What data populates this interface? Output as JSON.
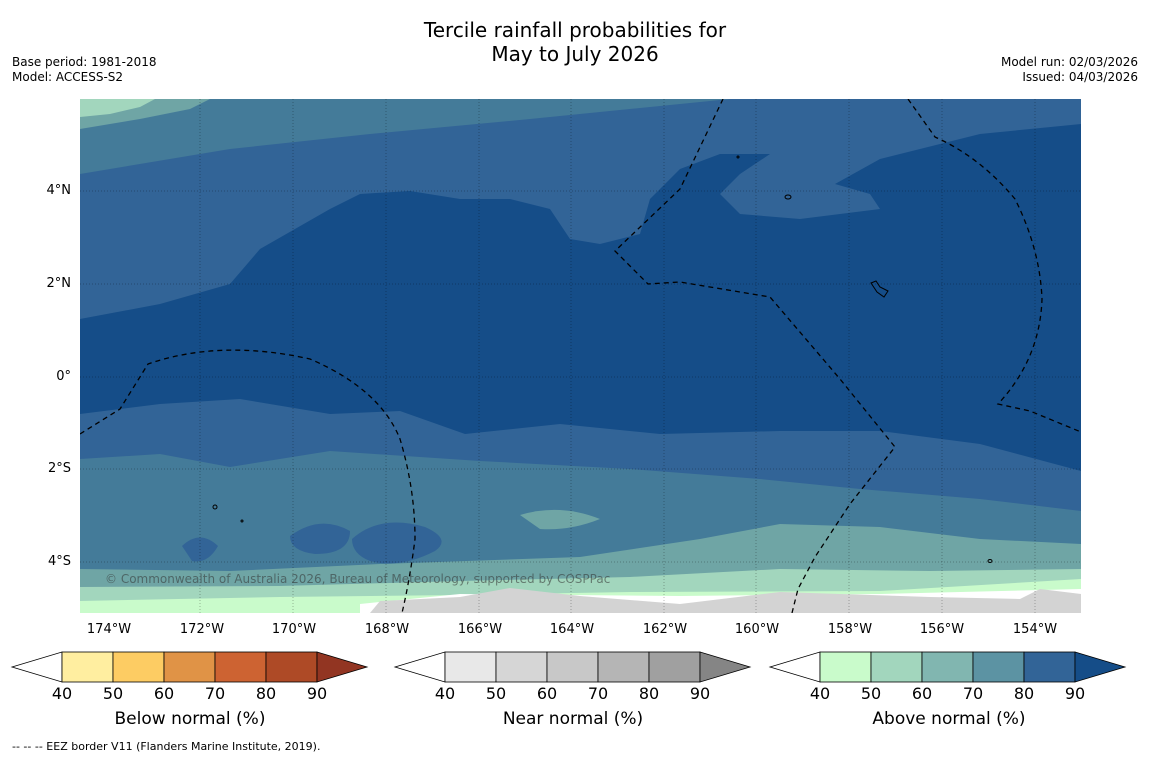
{
  "title_line1": "Tercile rainfall probabilities for",
  "title_line2": "May to July 2026",
  "base_period": "Base period: 1981-2018",
  "model": "Model: ACCESS-S2",
  "model_run": "Model run: 02/03/2026",
  "issued": "Issued: 04/03/2026",
  "copyright": "© Commonwealth of Australia 2026, Bureau of Meteorology, supported by COSPPac",
  "lat_labels": [
    "4°N",
    "2°N",
    "0°",
    "2°S",
    "4°S"
  ],
  "lon_labels": [
    "174°W",
    "172°W",
    "170°W",
    "168°W",
    "166°W",
    "164°W",
    "162°W",
    "160°W",
    "158°W",
    "156°W",
    "154°W"
  ],
  "colorbars": [
    {
      "title": "Below normal (%)",
      "ticks": [
        "40",
        "50",
        "60",
        "70",
        "80",
        "90"
      ],
      "colors": [
        "#ffeea0",
        "#fdcc63",
        "#e09346",
        "#cd6332",
        "#ae4a26",
        "#923522"
      ]
    },
    {
      "title": "Near normal (%)",
      "ticks": [
        "40",
        "50",
        "60",
        "70",
        "80",
        "90"
      ],
      "colors": [
        "#e8e8e8",
        "#d6d6d6",
        "#c8c8c8",
        "#b5b5b5",
        "#a0a0a0",
        "#858585"
      ]
    },
    {
      "title": "Above normal (%)",
      "ticks": [
        "40",
        "50",
        "60",
        "70",
        "80",
        "90"
      ],
      "colors": [
        "#c9fbcb",
        "#a2d6bd",
        "#81b6b0",
        "#5c93a3",
        "#326497",
        "#154d88"
      ]
    }
  ],
  "footnote": "-- -- -- EEZ border V11 (Flanders Marine Institute, 2019).",
  "palette": {
    "above_50": "#a2d6bd",
    "above_60": "#6fa5a5",
    "above_70": "#447b99",
    "above_80": "#326497",
    "above_90": "#154d88",
    "above_40": "#c9fbcb",
    "near_40": "#e6e6e6",
    "near_50": "#d3d3d3"
  }
}
